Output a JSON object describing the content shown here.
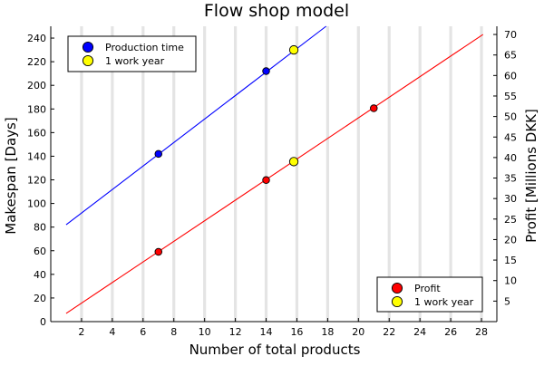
{
  "chart_data": {
    "type": "line",
    "title": "Flow shop model",
    "xlabel": "Number of total products",
    "ylabel_left": "Makespan [Days]",
    "ylabel_right": "Profit [Millions DKK]",
    "xlim": [
      0,
      29
    ],
    "ylim_left": [
      0,
      250
    ],
    "ylim_right": [
      0,
      72
    ],
    "x_ticks": [
      2,
      4,
      6,
      8,
      10,
      12,
      14,
      16,
      18,
      20,
      22,
      24,
      26,
      28
    ],
    "y_ticks_left": [
      0,
      20,
      40,
      60,
      80,
      100,
      120,
      140,
      160,
      180,
      200,
      220,
      240
    ],
    "y_ticks_right": [
      5,
      10,
      15,
      20,
      25,
      30,
      35,
      40,
      45,
      50,
      55,
      60,
      65,
      70
    ],
    "vertical_grid_x": [
      2,
      4,
      6,
      8,
      10,
      12,
      14,
      16,
      18,
      20,
      22,
      24,
      26,
      28
    ],
    "grid": true,
    "series": [
      {
        "name": "Production time",
        "axis": "left",
        "color": "#0000ff",
        "line": {
          "x": [
            1,
            17.9
          ],
          "y": [
            82,
            250
          ]
        },
        "points": [
          {
            "x": 7,
            "y": 142
          },
          {
            "x": 14,
            "y": 212
          }
        ]
      },
      {
        "name": "1 work year",
        "axis": "left",
        "color": "#ffff00",
        "points": [
          {
            "x": 15.8,
            "y": 230
          }
        ]
      },
      {
        "name": "Profit",
        "axis": "right",
        "color": "#ff0000",
        "line": {
          "x": [
            1,
            28.1
          ],
          "y": [
            2,
            70
          ]
        },
        "points": [
          {
            "x": 7,
            "y": 17
          },
          {
            "x": 14,
            "y": 34.5
          },
          {
            "x": 21,
            "y": 52
          }
        ]
      },
      {
        "name": "1 work year",
        "axis": "right",
        "color": "#ffff00",
        "points": [
          {
            "x": 15.8,
            "y": 39
          }
        ]
      }
    ],
    "legends": [
      {
        "position": "top-left",
        "entries": [
          {
            "label": "Production time",
            "color": "#0000ff"
          },
          {
            "label": "1 work year",
            "color": "#ffff00"
          }
        ]
      },
      {
        "position": "bottom-right",
        "entries": [
          {
            "label": "Profit",
            "color": "#ff0000"
          },
          {
            "label": "1 work year",
            "color": "#ffff00"
          }
        ]
      }
    ]
  }
}
